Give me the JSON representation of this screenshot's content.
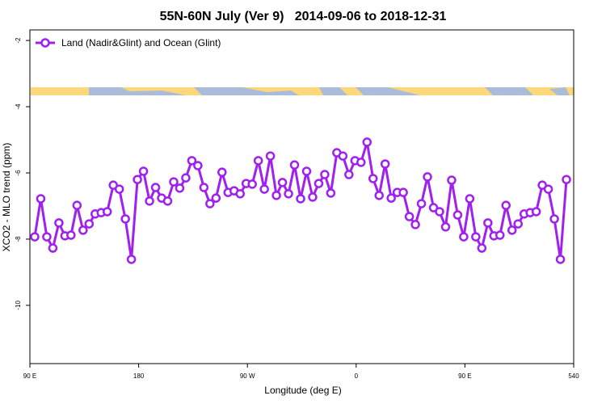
{
  "chart_data": {
    "type": "line",
    "title": "55N-60N July (Ver 9)   2014-09-06 to 2018-12-31",
    "xlabel": "Longitude (deg E)",
    "ylabel": "XCO2 - MLO trend (ppm)",
    "xlim": [
      90,
      540
    ],
    "ylim": [
      -11.76,
      -1.68
    ],
    "xticks": [
      {
        "value": 90,
        "label": "90 E"
      },
      180,
      {
        "value": 270,
        "label": "90 W"
      },
      {
        "value": 360,
        "label": "0"
      },
      {
        "value": 450,
        "label": "90 E"
      },
      540
    ],
    "yticks": [
      -2,
      -4,
      -6,
      -8,
      -10
    ],
    "legend": "top-left",
    "x": [
      94,
      99,
      104,
      109,
      114,
      119,
      124,
      129,
      134,
      139,
      144,
      149,
      154,
      159,
      164,
      169,
      174,
      179,
      184,
      189,
      194,
      199,
      204,
      209,
      214,
      219,
      224,
      229,
      234,
      239,
      244,
      249,
      254,
      259,
      264,
      269,
      274,
      279,
      284,
      289,
      294,
      299,
      304,
      309,
      314,
      319,
      324,
      329,
      334,
      339,
      344,
      349,
      354,
      359,
      364,
      369,
      374,
      379,
      384,
      389,
      394,
      399,
      404,
      409,
      414,
      419,
      424,
      429,
      434,
      439,
      444,
      449,
      454,
      459,
      464,
      469,
      474,
      479,
      484,
      489,
      494,
      499,
      504,
      509,
      514,
      519,
      524,
      529,
      534
    ],
    "series": [
      {
        "name": "Land (Nadir&Glint) and Ocean (Glint)",
        "color": "#a020f0",
        "values": [
          -7.93,
          -6.78,
          -7.93,
          -8.27,
          -7.51,
          -7.9,
          -7.88,
          -6.98,
          -7.73,
          -7.54,
          -7.24,
          -7.2,
          -7.17,
          -6.37,
          -6.49,
          -7.39,
          -8.61,
          -6.2,
          -5.95,
          -6.85,
          -6.44,
          -6.76,
          -6.85,
          -6.27,
          -6.46,
          -6.15,
          -5.63,
          -5.78,
          -6.44,
          -6.93,
          -6.76,
          -5.98,
          -6.59,
          -6.54,
          -6.63,
          -6.32,
          -6.34,
          -5.63,
          -6.49,
          -5.49,
          -6.68,
          -6.29,
          -6.63,
          -5.76,
          -6.78,
          -5.95,
          -6.73,
          -6.32,
          -6.05,
          -6.61,
          -5.39,
          -5.49,
          -6.05,
          -5.63,
          -5.68,
          -5.07,
          -6.17,
          -6.68,
          -5.73,
          -6.76,
          -6.59,
          -6.59,
          -7.32,
          -7.56,
          -6.93,
          -6.12,
          -7.05,
          -7.17,
          -7.63,
          -6.22,
          -7.27,
          -7.93,
          -6.78,
          -7.93,
          -8.27,
          -7.51,
          -7.9,
          -7.88,
          -6.98,
          -7.73,
          -7.54,
          -7.24,
          -7.2,
          -7.17,
          -6.37,
          -6.49,
          -7.39,
          -8.61,
          -6.2
        ]
      }
    ]
  }
}
